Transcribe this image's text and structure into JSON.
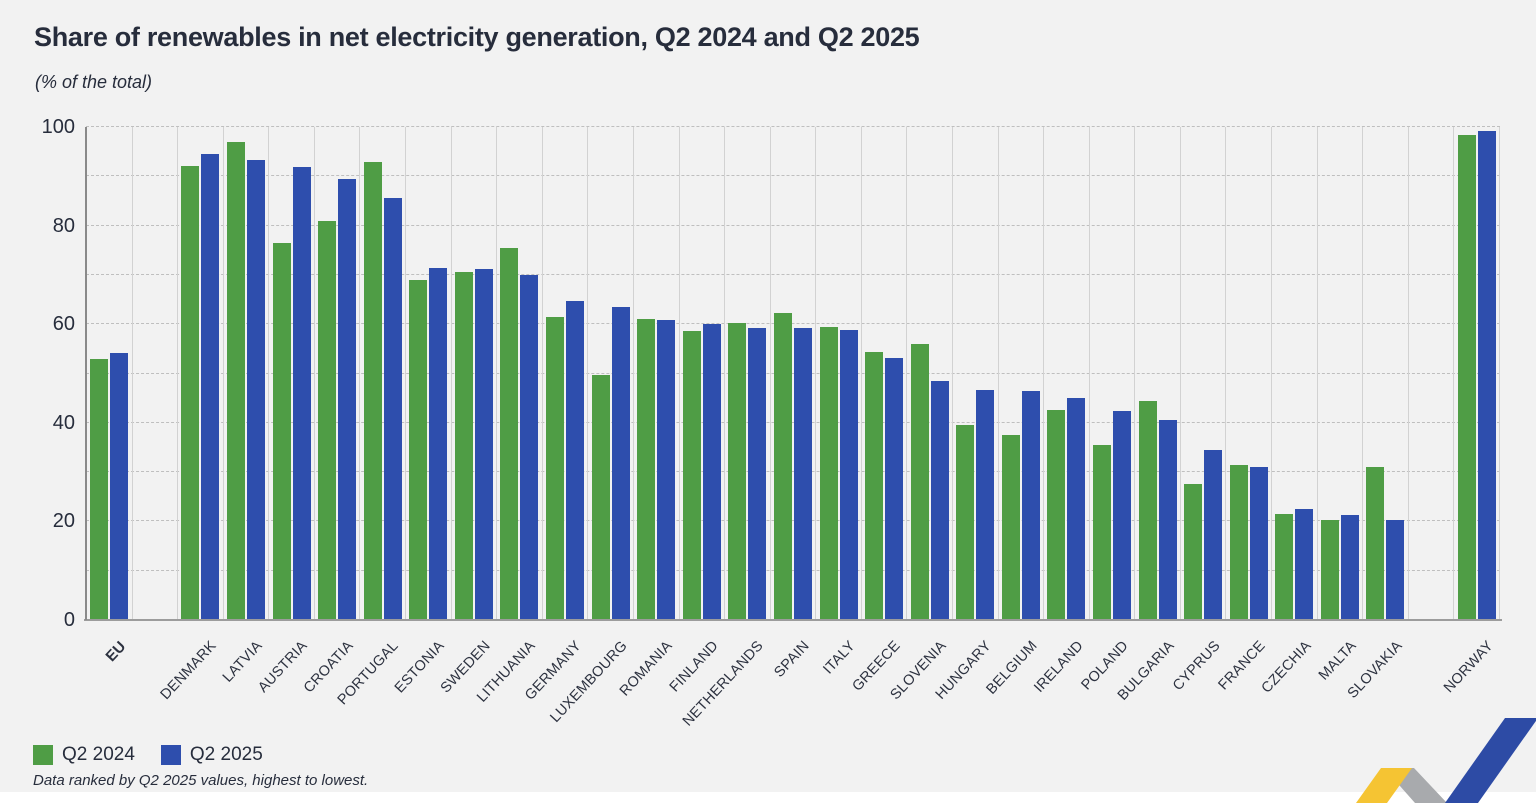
{
  "title": "Share of renewables in net electricity generation, Q2 2024 and Q2 2025",
  "subtitle": "(% of the total)",
  "footnote": "Data ranked by Q2 2025 values, highest to lowest.",
  "legend": {
    "items": [
      {
        "label": "Q2 2024",
        "color": "#4f9d45"
      },
      {
        "label": "Q2 2025",
        "color": "#2e4ead"
      }
    ]
  },
  "colors": {
    "q2_2024_green": "#4f9d45",
    "q2_2025_blue": "#2e4ead",
    "background": "#f2f2f2",
    "text": "#272d3c",
    "gridline": "#bfbfbf",
    "column_separator": "#d2d2d2",
    "baseline": "#9c9c9c"
  },
  "chart_data": {
    "type": "bar",
    "title": "Share of renewables in net electricity generation, Q2 2024 and Q2 2025",
    "subtitle": "(% of the total)",
    "ylabel": "% of the total",
    "xlabel": "",
    "ylim": [
      0,
      100
    ],
    "yticks": [
      0,
      20,
      40,
      60,
      80,
      100
    ],
    "gridline_step": 10,
    "grid": "horizontal dashed every 10, vertical solid category separators",
    "legend_position": "bottom-left",
    "bold_categories": [
      "EU"
    ],
    "gaps_after": [
      "EU",
      "SLOVAKIA"
    ],
    "categories": [
      "EU",
      "DENMARK",
      "LATVIA",
      "AUSTRIA",
      "CROATIA",
      "PORTUGAL",
      "ESTONIA",
      "SWEDEN",
      "LITHUANIA",
      "GERMANY",
      "LUXEMBOURG",
      "ROMANIA",
      "FINLAND",
      "NETHERLANDS",
      "SPAIN",
      "ITALY",
      "GREECE",
      "SLOVENIA",
      "HUNGARY",
      "BELGIUM",
      "IRELAND",
      "POLAND",
      "BULGARIA",
      "CYPRUS",
      "FRANCE",
      "CZECHIA",
      "MALTA",
      "SLOVAKIA",
      "NORWAY"
    ],
    "series": [
      {
        "name": "Q2 2024",
        "color": "#4f9d45",
        "values": [
          52.9,
          92.0,
          97.0,
          76.5,
          81.0,
          93.0,
          69.0,
          70.5,
          75.5,
          61.5,
          49.8,
          61.0,
          58.6,
          60.2,
          62.2,
          59.4,
          54.3,
          55.9,
          39.6,
          37.5,
          42.5,
          35.4,
          44.4,
          27.5,
          31.5,
          21.5,
          20.2,
          31.1,
          98.4
        ]
      },
      {
        "name": "Q2 2025",
        "color": "#2e4ead",
        "values": [
          54.1,
          94.5,
          93.4,
          91.8,
          89.5,
          85.6,
          71.5,
          71.1,
          69.9,
          64.7,
          63.4,
          60.8,
          60.0,
          59.3,
          59.2,
          58.8,
          53.1,
          48.4,
          46.7,
          46.5,
          45.0,
          42.4,
          40.5,
          34.5,
          31.1,
          22.5,
          21.4,
          20.2,
          99.1
        ]
      }
    ]
  },
  "logo": {
    "name": "statistics zigzag arrow logo",
    "colors": {
      "yellow": "#f5c433",
      "gray": "#a8aaad",
      "blue": "#2d4ba5"
    }
  }
}
